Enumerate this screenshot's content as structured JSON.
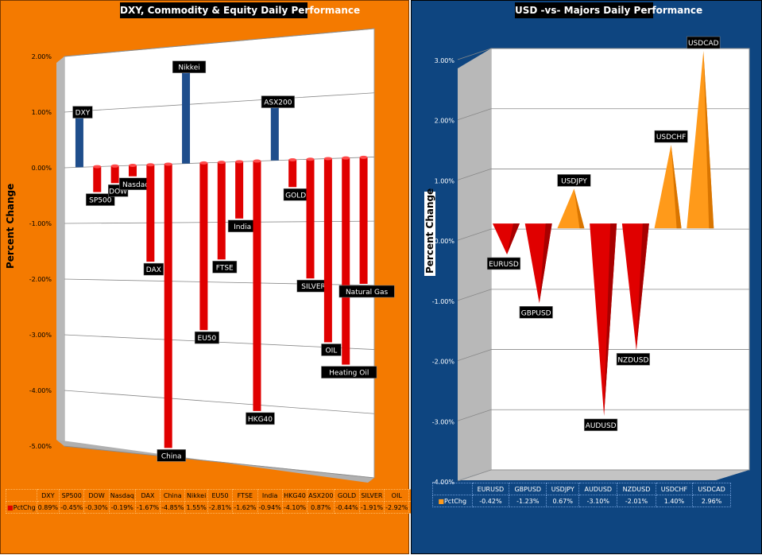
{
  "left": {
    "title": "DXY, Commodity & Equity Daily Performance",
    "ylabel": "Percent Change",
    "table_row_label": "PctChg"
  },
  "right": {
    "title": "USD -vs- Majors Daily Performance",
    "ylabel": "Percent Change",
    "table_row_label": "PctChg"
  },
  "chart_data": [
    {
      "type": "bar",
      "title": "DXY, Commodity & Equity Daily Performance",
      "ylabel": "Percent Change",
      "ylim": [
        -5.0,
        2.0
      ],
      "yticks": [
        "2.00%",
        "1.00%",
        "0.00%",
        "-1.00%",
        "-2.00%",
        "-3.00%",
        "-4.00%",
        "-5.00%"
      ],
      "categories": [
        "DXY",
        "SP500",
        "DOW",
        "Nasdaq",
        "DAX",
        "China",
        "Nikkei",
        "EU50",
        "FTSE",
        "India",
        "HKG40",
        "ASX200",
        "GOLD",
        "SILVER",
        "OIL",
        "Heating Oil",
        "Natural Gas"
      ],
      "values": [
        0.89,
        -0.45,
        -0.3,
        -0.19,
        -1.67,
        -4.85,
        1.55,
        -2.81,
        -1.62,
        -0.94,
        -4.1,
        0.87,
        -0.44,
        -1.91,
        -2.92,
        -3.26,
        -1.98
      ],
      "value_labels": [
        "0.89%",
        "-0.45%",
        "-0.30%",
        "-0.19%",
        "-1.67%",
        "-4.85%",
        "1.55%",
        "-2.81%",
        "-1.62%",
        "-0.94%",
        "-4.10%",
        "0.87%",
        "-0.44%",
        "-1.91%",
        "-2.92%",
        "-3.26%",
        "-1.98%"
      ],
      "table_headers": [
        "DXY",
        "SP500",
        "DOW",
        "Nasdaq",
        "DAX",
        "China",
        "Nikkei",
        "EU50",
        "FTSE",
        "India",
        "HKG40",
        "ASX200",
        "GOLD",
        "SILVER",
        "OIL",
        "Heating Oil",
        "Natural Gas"
      ],
      "colors": {
        "positive": "#1f4e8c",
        "negative": "#e00000"
      }
    },
    {
      "type": "bar",
      "title": "USD -vs- Majors Daily Performance",
      "ylabel": "Percent Change",
      "ylim": [
        -4.0,
        3.0
      ],
      "yticks": [
        "3.00%",
        "2.00%",
        "1.00%",
        "0.00%",
        "-1.00%",
        "-2.00%",
        "-3.00%",
        "-4.00%"
      ],
      "categories": [
        "EURUSD",
        "GBPUSD",
        "USDJPY",
        "AUDUSD",
        "NZDUSD",
        "USDCHF",
        "USDCAD"
      ],
      "values": [
        -0.42,
        -1.23,
        0.67,
        -3.1,
        -2.01,
        1.4,
        2.96
      ],
      "value_labels": [
        "-0.42%",
        "-1.23%",
        "0.67%",
        "-3.10%",
        "-2.01%",
        "1.40%",
        "2.96%"
      ],
      "colors": {
        "positive": "#ff9a1a",
        "negative": "#e00000"
      }
    }
  ]
}
